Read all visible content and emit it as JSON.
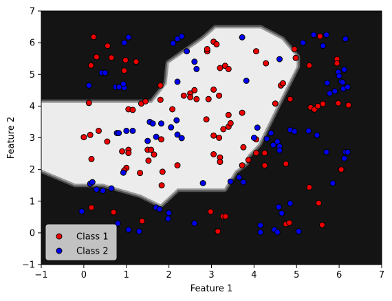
{
  "chart_data": {
    "type": "scatter",
    "title": "",
    "xlabel": "Feature 1",
    "ylabel": "Feature 2",
    "xlim": [
      -1,
      7
    ],
    "ylim": [
      -1,
      7
    ],
    "xticks": [
      -1,
      0,
      1,
      2,
      3,
      4,
      5,
      6,
      7
    ],
    "yticks": [
      -1,
      0,
      1,
      2,
      3,
      4,
      5,
      6,
      7
    ],
    "grid": false,
    "legend_position": "lower-left",
    "background": "decision-region",
    "region_colors": {
      "outside": "#141414",
      "inside": "#ececec"
    },
    "decision_region": [
      [
        -1.0,
        4.1
      ],
      [
        1.6,
        4.1
      ],
      [
        1.95,
        4.7
      ],
      [
        2.0,
        5.35
      ],
      [
        2.8,
        6.1
      ],
      [
        3.1,
        6.45
      ],
      [
        3.65,
        6.45
      ],
      [
        4.15,
        6.45
      ],
      [
        4.65,
        6.1
      ],
      [
        5.0,
        5.55
      ],
      [
        5.0,
        5.25
      ],
      [
        4.5,
        3.9
      ],
      [
        4.1,
        2.8
      ],
      [
        3.85,
        2.45
      ],
      [
        3.8,
        2.2
      ],
      [
        3.55,
        1.95
      ],
      [
        3.3,
        1.4
      ],
      [
        2.2,
        1.4
      ],
      [
        1.8,
        0.9
      ],
      [
        1.35,
        1.2
      ],
      [
        0.45,
        1.55
      ],
      [
        -0.2,
        1.55
      ],
      [
        -1.0,
        2.0
      ]
    ],
    "series": [
      {
        "name": "Class 1",
        "color": "#ee0000",
        "points": [
          [
            0.23,
            6.18
          ],
          [
            0.56,
            5.9
          ],
          [
            0.3,
            5.55
          ],
          [
            0.17,
            5.28
          ],
          [
            0.95,
            5.12
          ],
          [
            0.65,
            5.53
          ],
          [
            0.98,
            5.45
          ],
          [
            1.23,
            5.4
          ],
          [
            0.12,
            4.1
          ],
          [
            0.15,
            3.09
          ],
          [
            0.35,
            3.22
          ],
          [
            0.0,
            3.02
          ],
          [
            0.55,
            2.88
          ],
          [
            0.18,
            2.33
          ],
          [
            0.9,
            2.57
          ],
          [
            1.05,
            2.62
          ],
          [
            1.05,
            2.52
          ],
          [
            1.0,
            2.05
          ],
          [
            0.95,
            1.97
          ],
          [
            1.05,
            3.9
          ],
          [
            1.15,
            3.88
          ],
          [
            1.35,
            4.08
          ],
          [
            1.45,
            4.15
          ],
          [
            1.5,
            2.62
          ],
          [
            1.58,
            2.62
          ],
          [
            1.52,
            2.28
          ],
          [
            1.65,
            2.47
          ],
          [
            1.82,
            2.95
          ],
          [
            1.85,
            1.93
          ],
          [
            1.83,
            1.5
          ],
          [
            1.32,
            1.89
          ],
          [
            1.8,
            4.65
          ],
          [
            1.8,
            4.2
          ],
          [
            2.08,
            3.9
          ],
          [
            2.2,
            2.13
          ],
          [
            2.35,
            4.33
          ],
          [
            2.5,
            4.4
          ],
          [
            2.6,
            4.5
          ],
          [
            2.5,
            4.28
          ],
          [
            2.65,
            4.22
          ],
          [
            2.9,
            5.73
          ],
          [
            2.9,
            5.8
          ],
          [
            3.05,
            6.03
          ],
          [
            3.12,
            5.95
          ],
          [
            3.2,
            5.2
          ],
          [
            3.32,
            5.27
          ],
          [
            3.4,
            5.17
          ],
          [
            3.05,
            4.52
          ],
          [
            3.18,
            4.33
          ],
          [
            2.93,
            4.22
          ],
          [
            3.4,
            3.72
          ],
          [
            3.4,
            3.35
          ],
          [
            3.45,
            3.46
          ],
          [
            3.28,
            3.27
          ],
          [
            3.18,
            3.0
          ],
          [
            3.72,
            3.79
          ],
          [
            2.88,
            3.58
          ],
          [
            3.05,
            3.07
          ],
          [
            3.05,
            2.48
          ],
          [
            3.2,
            2.38
          ],
          [
            3.2,
            2.24
          ],
          [
            3.75,
            2.7
          ],
          [
            3.72,
            2.13
          ],
          [
            3.87,
            2.3
          ],
          [
            4.05,
            5.73
          ],
          [
            4.28,
            5.35
          ],
          [
            4.05,
            2.95
          ],
          [
            4.05,
            2.52
          ],
          [
            4.25,
            2.13
          ],
          [
            4.25,
            2.52
          ],
          [
            4.5,
            4.08
          ],
          [
            4.63,
            4.65
          ],
          [
            4.68,
            4.72
          ],
          [
            4.85,
            4.22
          ],
          [
            4.95,
            5.8
          ],
          [
            4.98,
            5.52
          ],
          [
            4.75,
            2.18
          ],
          [
            4.75,
            0.28
          ],
          [
            4.83,
            0.32
          ],
          [
            5.3,
            5.28
          ],
          [
            5.33,
            3.96
          ],
          [
            5.42,
            3.89
          ],
          [
            5.5,
            4.0
          ],
          [
            5.55,
            6.2
          ],
          [
            5.62,
            4.07
          ],
          [
            5.95,
            5.48
          ],
          [
            5.95,
            5.35
          ],
          [
            5.98,
            4.09
          ],
          [
            6.05,
            2.0
          ],
          [
            6.22,
            4.03
          ],
          [
            5.3,
            1.44
          ],
          [
            5.52,
            0.94
          ],
          [
            5.6,
            0.25
          ],
          [
            0.18,
            0.8
          ],
          [
            0.7,
            0.65
          ],
          [
            1.37,
            0.37
          ],
          [
            2.98,
            0.67
          ],
          [
            3.15,
            0.05
          ],
          [
            3.27,
            0.52
          ],
          [
            3.33,
            0.52
          ]
        ]
      },
      {
        "name": "Class 2",
        "color": "#0000ee",
        "points": [
          [
            0.12,
            4.65
          ],
          [
            0.42,
            5.05
          ],
          [
            0.5,
            5.05
          ],
          [
            0.75,
            4.6
          ],
          [
            0.83,
            4.6
          ],
          [
            0.95,
            4.58
          ],
          [
            0.93,
            4.7
          ],
          [
            0.95,
            6.0
          ],
          [
            1.05,
            6.17
          ],
          [
            1.55,
            3.5
          ],
          [
            1.62,
            3.45
          ],
          [
            1.5,
            2.9
          ],
          [
            1.7,
            3.03
          ],
          [
            1.82,
            3.45
          ],
          [
            2.05,
            3.33
          ],
          [
            2.18,
            3.55
          ],
          [
            2.2,
            3.1
          ],
          [
            2.3,
            2.99
          ],
          [
            2.2,
            4.77
          ],
          [
            2.1,
            5.98
          ],
          [
            2.2,
            6.12
          ],
          [
            2.3,
            6.2
          ],
          [
            2.42,
            5.73
          ],
          [
            2.6,
            5.4
          ],
          [
            2.65,
            5.17
          ],
          [
            0.78,
            3.15
          ],
          [
            0.82,
            3.15
          ],
          [
            1.0,
            3.22
          ],
          [
            1.15,
            3.22
          ],
          [
            0.93,
            1.9
          ],
          [
            0.15,
            1.55
          ],
          [
            0.2,
            1.6
          ],
          [
            0.3,
            1.37
          ],
          [
            0.45,
            1.33
          ],
          [
            0.65,
            1.4
          ],
          [
            2.8,
            1.57
          ],
          [
            3.45,
            1.62
          ],
          [
            3.65,
            1.75
          ],
          [
            3.75,
            1.6
          ],
          [
            3.72,
            6.17
          ],
          [
            3.82,
            4.8
          ],
          [
            4.0,
            3.0
          ],
          [
            4.08,
            3.32
          ],
          [
            4.3,
            2.97
          ],
          [
            4.4,
            3.15
          ],
          [
            4.45,
            2.77
          ],
          [
            4.55,
            2.88
          ],
          [
            4.6,
            2.73
          ],
          [
            4.6,
            2.6
          ],
          [
            4.6,
            5.48
          ],
          [
            4.85,
            3.25
          ],
          [
            4.95,
            3.2
          ],
          [
            5.15,
            6.0
          ],
          [
            5.28,
            3.22
          ],
          [
            5.4,
            6.25
          ],
          [
            5.48,
            3.08
          ],
          [
            5.62,
            5.9
          ],
          [
            5.7,
            6.25
          ],
          [
            5.72,
            4.73
          ],
          [
            5.7,
            2.55
          ],
          [
            5.78,
            4.4
          ],
          [
            5.85,
            1.57
          ],
          [
            5.9,
            4.47
          ],
          [
            5.98,
            5.07
          ],
          [
            6.0,
            4.95
          ],
          [
            6.05,
            4.77
          ],
          [
            6.08,
            4.75
          ],
          [
            6.1,
            4.55
          ],
          [
            6.15,
            2.55
          ],
          [
            6.2,
            4.6
          ],
          [
            6.2,
            2.55
          ],
          [
            6.12,
            2.35
          ],
          [
            6.12,
            5.15
          ],
          [
            6.15,
            6.12
          ],
          [
            -0.05,
            0.68
          ],
          [
            0.8,
            0.3
          ],
          [
            1.05,
            0.1
          ],
          [
            1.3,
            0.05
          ],
          [
            1.7,
            0.8
          ],
          [
            1.78,
            0.75
          ],
          [
            1.98,
            0.45
          ],
          [
            2.0,
            0.63
          ],
          [
            2.6,
            0.3
          ],
          [
            4.15,
            0.02
          ],
          [
            4.15,
            0.24
          ],
          [
            4.48,
            0.1
          ],
          [
            4.55,
            0.02
          ],
          [
            4.58,
            0.82
          ],
          [
            4.65,
            0.62
          ],
          [
            4.85,
            0.93
          ],
          [
            5.05,
            0.05
          ]
        ]
      }
    ]
  }
}
